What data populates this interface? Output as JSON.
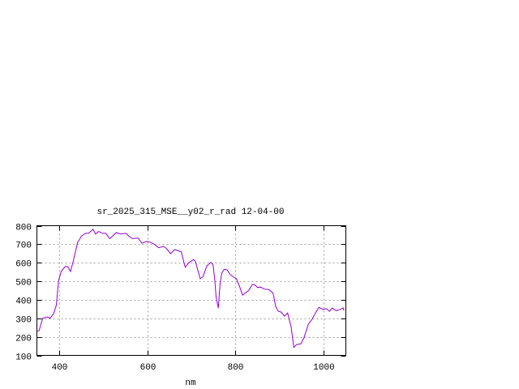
{
  "chart_data": {
    "type": "line",
    "title": "sr_2025_315_MSE__y02_r_rad 12-04-00",
    "xlabel": "nm",
    "ylabel": "",
    "xlim": [
      350,
      1050
    ],
    "ylim": [
      100,
      800
    ],
    "xticks": [
      400,
      600,
      800,
      1000
    ],
    "yticks": [
      100,
      200,
      300,
      400,
      500,
      600,
      700,
      800
    ],
    "grid": true,
    "line_color": "#9400d3",
    "grid_color": "#a0a0a0",
    "series": [
      {
        "x": [
          349,
          355,
          363,
          374,
          380,
          388,
          394,
          399,
          405,
          414,
          420,
          426,
          432,
          442,
          451,
          460,
          467,
          477,
          483,
          490,
          498,
          506,
          515,
          530,
          539,
          552,
          558,
          567,
          579,
          588,
          598,
          607,
          616,
          626,
          637,
          643,
          653,
          662,
          677,
          686,
          695,
          705,
          709,
          720,
          726,
          735,
          744,
          749,
          753,
          756,
          761,
          765,
          769,
          775,
          781,
          787,
          793,
          802,
          809,
          816,
          830,
          838,
          844,
          850,
          857,
          865,
          876,
          885,
          891,
          897,
          903,
          911,
          918,
          926,
          932,
          938,
          948,
          955,
          965,
          974,
          981,
          989,
          998,
          1006,
          1013,
          1019,
          1028,
          1037,
          1044,
          1046
        ],
        "y": [
          231,
          233,
          300,
          308,
          300,
          326,
          370,
          502,
          553,
          579,
          579,
          553,
          605,
          708,
          744,
          759,
          759,
          781,
          755,
          769,
          759,
          759,
          730,
          763,
          755,
          759,
          744,
          730,
          734,
          705,
          715,
          711,
          700,
          681,
          689,
          678,
          649,
          671,
          659,
          576,
          602,
          617,
          608,
          514,
          524,
          583,
          602,
          590,
          510,
          414,
          355,
          488,
          546,
          565,
          561,
          539,
          527,
          514,
          473,
          425,
          451,
          483,
          480,
          466,
          469,
          458,
          455,
          436,
          363,
          338,
          334,
          312,
          329,
          253,
          143,
          158,
          162,
          194,
          268,
          297,
          329,
          359,
          348,
          352,
          338,
          356,
          341,
          348,
          356,
          341
        ]
      }
    ]
  }
}
